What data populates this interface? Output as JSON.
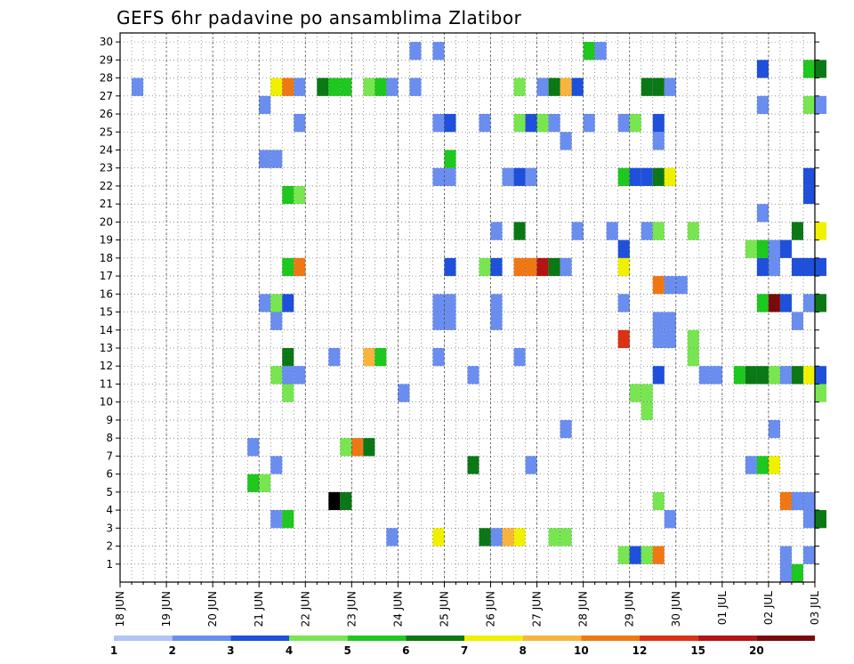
{
  "chart_data": {
    "type": "heatmap",
    "title": "GEFS 6hr padavine po ansamblima Zlatibor",
    "x_tick_labels": [
      "18 JUN",
      "19 JUN",
      "20 JUN",
      "21 JUN",
      "22 JUN",
      "23 JUN",
      "24 JUN",
      "25 JUN",
      "26 JUN",
      "27 JUN",
      "28 JUN",
      "29 JUN",
      "30 JUN",
      "01 JUL",
      "02 JUL",
      "03 JUL"
    ],
    "x_range_days": [
      0,
      15
    ],
    "y_tick_labels": [
      1,
      2,
      3,
      4,
      5,
      6,
      7,
      8,
      9,
      10,
      11,
      12,
      13,
      14,
      15,
      16,
      17,
      18,
      19,
      20,
      21,
      22,
      23,
      24,
      25,
      26,
      27,
      28,
      29,
      30
    ],
    "y_range": [
      0,
      30
    ],
    "grid": "dotted",
    "colorbar": {
      "labels": [
        "1",
        "2",
        "3",
        "4",
        "5",
        "6",
        "7",
        "8",
        "10",
        "12",
        "15",
        "20"
      ],
      "colors": [
        "#b0c4f5",
        "#6a8ef0",
        "#1e50dc",
        "#78e650",
        "#1ec81e",
        "#0a7814",
        "#f0f000",
        "#fab43c",
        "#f07814",
        "#dc3214",
        "#b41414",
        "#7a0a0a"
      ]
    },
    "cells": [
      [
        14.25,
        0,
        1
      ],
      [
        14.5,
        0,
        4
      ],
      [
        10.75,
        1,
        3
      ],
      [
        11.0,
        1,
        2
      ],
      [
        11.25,
        1,
        3
      ],
      [
        11.5,
        1,
        8
      ],
      [
        14.25,
        1,
        1
      ],
      [
        14.75,
        1,
        1
      ],
      [
        5.75,
        2,
        1
      ],
      [
        6.75,
        2,
        6
      ],
      [
        7.75,
        2,
        5
      ],
      [
        8.0,
        2,
        1
      ],
      [
        8.25,
        2,
        7
      ],
      [
        8.5,
        2,
        6
      ],
      [
        9.25,
        2,
        3
      ],
      [
        9.5,
        2,
        3
      ],
      [
        3.25,
        3,
        1
      ],
      [
        3.5,
        3,
        4
      ],
      [
        11.75,
        3,
        1
      ],
      [
        14.75,
        3,
        1
      ],
      [
        15.0,
        3,
        5
      ],
      [
        4.5,
        4,
        12
      ],
      [
        4.75,
        4,
        5
      ],
      [
        11.5,
        4,
        3
      ],
      [
        14.25,
        4,
        8
      ],
      [
        14.5,
        4,
        1
      ],
      [
        14.75,
        4,
        1
      ],
      [
        2.75,
        5,
        4
      ],
      [
        3.0,
        5,
        3
      ],
      [
        3.25,
        6,
        1
      ],
      [
        7.5,
        6,
        5
      ],
      [
        8.75,
        6,
        1
      ],
      [
        13.5,
        6,
        1
      ],
      [
        13.75,
        6,
        4
      ],
      [
        14.0,
        6,
        6
      ],
      [
        2.75,
        7,
        1
      ],
      [
        4.75,
        7,
        3
      ],
      [
        5.0,
        7,
        8
      ],
      [
        5.25,
        7,
        5
      ],
      [
        9.5,
        8,
        1
      ],
      [
        14.0,
        8,
        1
      ],
      [
        11.25,
        9,
        3
      ],
      [
        3.5,
        10,
        3
      ],
      [
        6.0,
        10,
        1
      ],
      [
        11.0,
        10,
        3
      ],
      [
        11.25,
        10,
        3
      ],
      [
        15.0,
        10,
        3
      ],
      [
        3.25,
        11,
        3
      ],
      [
        3.5,
        11,
        1
      ],
      [
        3.75,
        11,
        1
      ],
      [
        7.5,
        11,
        1
      ],
      [
        11.5,
        11,
        2
      ],
      [
        12.5,
        11,
        1
      ],
      [
        12.75,
        11,
        1
      ],
      [
        13.25,
        11,
        4
      ],
      [
        13.5,
        11,
        5
      ],
      [
        13.75,
        11,
        5
      ],
      [
        14.0,
        11,
        3
      ],
      [
        14.25,
        11,
        1
      ],
      [
        14.5,
        11,
        5
      ],
      [
        14.75,
        11,
        6
      ],
      [
        15.0,
        11,
        2
      ],
      [
        3.5,
        12,
        5
      ],
      [
        4.5,
        12,
        1
      ],
      [
        5.25,
        12,
        7
      ],
      [
        5.5,
        12,
        4
      ],
      [
        6.75,
        12,
        1
      ],
      [
        8.5,
        12,
        1
      ],
      [
        12.25,
        12,
        3
      ],
      [
        10.75,
        13,
        9
      ],
      [
        11.5,
        13,
        1
      ],
      [
        11.75,
        13,
        1
      ],
      [
        12.25,
        13,
        3
      ],
      [
        3.25,
        14,
        1
      ],
      [
        6.75,
        14,
        1
      ],
      [
        7.0,
        14,
        1
      ],
      [
        8.0,
        14,
        1
      ],
      [
        11.5,
        14,
        1
      ],
      [
        11.75,
        14,
        1
      ],
      [
        14.5,
        14,
        1
      ],
      [
        3.0,
        15,
        1
      ],
      [
        3.25,
        15,
        3
      ],
      [
        3.5,
        15,
        2
      ],
      [
        6.75,
        15,
        1
      ],
      [
        7.0,
        15,
        1
      ],
      [
        8.0,
        15,
        1
      ],
      [
        10.75,
        15,
        1
      ],
      [
        13.75,
        15,
        4
      ],
      [
        14.0,
        15,
        11
      ],
      [
        14.25,
        15,
        2
      ],
      [
        14.75,
        15,
        1
      ],
      [
        15.0,
        15,
        5
      ],
      [
        11.5,
        16,
        8
      ],
      [
        11.75,
        16,
        1
      ],
      [
        12.0,
        16,
        1
      ],
      [
        3.5,
        17,
        4
      ],
      [
        3.75,
        17,
        8
      ],
      [
        7.0,
        17,
        2
      ],
      [
        7.75,
        17,
        3
      ],
      [
        8.0,
        17,
        2
      ],
      [
        8.5,
        17,
        8
      ],
      [
        8.75,
        17,
        8
      ],
      [
        9.0,
        17,
        10
      ],
      [
        9.25,
        17,
        5
      ],
      [
        9.5,
        17,
        1
      ],
      [
        10.75,
        17,
        6
      ],
      [
        13.75,
        17,
        2
      ],
      [
        14.0,
        17,
        1
      ],
      [
        14.5,
        17,
        2
      ],
      [
        14.75,
        17,
        2
      ],
      [
        15.0,
        17,
        2
      ],
      [
        10.75,
        18,
        2
      ],
      [
        13.5,
        18,
        3
      ],
      [
        13.75,
        18,
        4
      ],
      [
        14.0,
        18,
        1
      ],
      [
        14.25,
        18,
        2
      ],
      [
        8.0,
        19,
        1
      ],
      [
        8.5,
        19,
        5
      ],
      [
        9.75,
        19,
        1
      ],
      [
        10.5,
        19,
        1
      ],
      [
        11.25,
        19,
        1
      ],
      [
        11.5,
        19,
        3
      ],
      [
        12.25,
        19,
        3
      ],
      [
        14.5,
        19,
        5
      ],
      [
        15.0,
        19,
        6
      ],
      [
        13.75,
        20,
        1
      ],
      [
        3.5,
        21,
        4
      ],
      [
        3.75,
        21,
        3
      ],
      [
        14.75,
        21,
        2
      ],
      [
        6.75,
        22,
        1
      ],
      [
        7.0,
        22,
        1
      ],
      [
        8.25,
        22,
        1
      ],
      [
        8.5,
        22,
        2
      ],
      [
        8.75,
        22,
        1
      ],
      [
        10.75,
        22,
        4
      ],
      [
        11.0,
        22,
        2
      ],
      [
        11.25,
        22,
        2
      ],
      [
        11.5,
        22,
        5
      ],
      [
        11.75,
        22,
        6
      ],
      [
        14.75,
        22,
        2
      ],
      [
        3.0,
        23,
        1
      ],
      [
        3.25,
        23,
        1
      ],
      [
        7.0,
        23,
        4
      ],
      [
        9.5,
        24,
        1
      ],
      [
        11.5,
        24,
        1
      ],
      [
        3.75,
        25,
        1
      ],
      [
        6.75,
        25,
        1
      ],
      [
        7.0,
        25,
        2
      ],
      [
        7.75,
        25,
        1
      ],
      [
        8.5,
        25,
        3
      ],
      [
        8.75,
        25,
        2
      ],
      [
        9.0,
        25,
        3
      ],
      [
        9.25,
        25,
        1
      ],
      [
        10.0,
        25,
        1
      ],
      [
        10.75,
        25,
        1
      ],
      [
        11.0,
        25,
        3
      ],
      [
        11.5,
        25,
        2
      ],
      [
        3.0,
        26,
        1
      ],
      [
        13.75,
        26,
        1
      ],
      [
        14.75,
        26,
        3
      ],
      [
        15.0,
        26,
        1
      ],
      [
        0.25,
        27,
        1
      ],
      [
        3.25,
        27,
        6
      ],
      [
        3.5,
        27,
        8
      ],
      [
        3.75,
        27,
        1
      ],
      [
        4.25,
        27,
        5
      ],
      [
        4.5,
        27,
        4
      ],
      [
        4.75,
        27,
        4
      ],
      [
        5.25,
        27,
        3
      ],
      [
        5.5,
        27,
        4
      ],
      [
        5.75,
        27,
        1
      ],
      [
        6.25,
        27,
        1
      ],
      [
        8.5,
        27,
        3
      ],
      [
        9.0,
        27,
        1
      ],
      [
        9.25,
        27,
        5
      ],
      [
        9.5,
        27,
        7
      ],
      [
        9.75,
        27,
        2
      ],
      [
        11.25,
        27,
        5
      ],
      [
        11.5,
        27,
        5
      ],
      [
        11.75,
        27,
        1
      ],
      [
        13.75,
        28,
        2
      ],
      [
        14.75,
        28,
        4
      ],
      [
        15.0,
        28,
        5
      ],
      [
        6.25,
        29,
        1
      ],
      [
        6.75,
        29,
        1
      ],
      [
        10.0,
        29,
        4
      ],
      [
        10.25,
        29,
        1
      ]
    ]
  }
}
